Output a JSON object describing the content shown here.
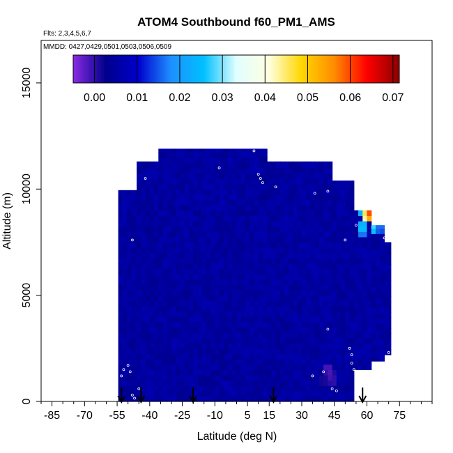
{
  "chart_data": {
    "type": "heatmap",
    "title": "ATOM4 Southbound f60_PM1_AMS",
    "flights_label": "Flts: 2,3,4,5,6,7",
    "dates_label": "MMDD: 0427,0429,0501,0503,0506,0509",
    "xlabel": "Latitude (deg N)",
    "ylabel": "Altitude (m)",
    "xlim": [
      -90,
      90
    ],
    "ylim": [
      0,
      17000
    ],
    "x_ticks": [
      -85,
      -70,
      -55,
      -40,
      -25,
      -10,
      5,
      15,
      30,
      45,
      60,
      75
    ],
    "x_minor_step": 5,
    "y_ticks": [
      0,
      5000,
      10000,
      15000
    ],
    "colorbar": {
      "range": [
        -0.005,
        0.0715
      ],
      "ticks": [
        "0.00",
        "0.01",
        "0.02",
        "0.03",
        "0.04",
        "0.05",
        "0.06",
        "0.07"
      ],
      "tick_values": [
        0.0,
        0.01,
        0.02,
        0.03,
        0.04,
        0.05,
        0.06,
        0.07
      ],
      "colors": [
        "#8a2be2",
        "#00008b",
        "#0000cd",
        "#1e90ff",
        "#00bfff",
        "#e0ffff",
        "#ffffe0",
        "#ffd700",
        "#ff8c00",
        "#ff0000",
        "#8b0000"
      ]
    },
    "arrow_latitudes": [
      -53,
      -44,
      -20,
      17,
      58
    ],
    "data_region": {
      "lat_edges": [
        -54.5,
        -46,
        -36,
        -26,
        -16,
        -6,
        4,
        14,
        24,
        34,
        44,
        54,
        62,
        68,
        71
      ],
      "top_alt": [
        9950,
        11300,
        11900,
        11900,
        11900,
        11900,
        11900,
        11300,
        11300,
        11300,
        10400,
        9000,
        8300,
        7500
      ],
      "bottom_alt": [
        0,
        0,
        0,
        0,
        0,
        0,
        0,
        0,
        0,
        0,
        0,
        1500,
        1900,
        2200
      ],
      "background_value": 0.005
    },
    "hotspots": [
      {
        "lat": 60,
        "alt": 8900,
        "value": 0.068
      },
      {
        "lat": 61.5,
        "alt": 8900,
        "value": 0.06
      },
      {
        "lat": 58.5,
        "alt": 8900,
        "value": 0.045
      },
      {
        "lat": 57,
        "alt": 9300,
        "value": 0.03
      },
      {
        "lat": 63,
        "alt": 8200,
        "value": 0.028
      },
      {
        "lat": 58,
        "alt": 8200,
        "value": 0.032
      },
      {
        "lat": 66,
        "alt": 8200,
        "value": 0.02
      },
      {
        "lat": 42,
        "alt": 1500,
        "value": -0.003
      },
      {
        "lat": 44,
        "alt": 1100,
        "value": -0.002
      },
      {
        "lat": 40,
        "alt": 1100,
        "value": 0.0
      }
    ],
    "samples": [
      [
        -53,
        1200
      ],
      [
        -52,
        1500
      ],
      [
        -50,
        1700
      ],
      [
        -49,
        1400
      ],
      [
        -48,
        300
      ],
      [
        -47,
        150
      ],
      [
        -45,
        600
      ],
      [
        -48,
        7600
      ],
      [
        -42,
        10500
      ],
      [
        -8,
        11000
      ],
      [
        8,
        11800
      ],
      [
        10,
        10700
      ],
      [
        11,
        10500
      ],
      [
        12,
        10300
      ],
      [
        18,
        10100
      ],
      [
        36,
        9800
      ],
      [
        42,
        9900
      ],
      [
        50,
        7600
      ],
      [
        55,
        8300
      ],
      [
        67,
        8400
      ],
      [
        68,
        7700
      ],
      [
        35,
        1200
      ],
      [
        40,
        1400
      ],
      [
        42,
        3400
      ],
      [
        52,
        2500
      ],
      [
        53,
        2200
      ],
      [
        53,
        1800
      ],
      [
        54,
        1500
      ],
      [
        55,
        1200
      ],
      [
        70,
        2300
      ],
      [
        44,
        600
      ],
      [
        46,
        500
      ]
    ]
  }
}
